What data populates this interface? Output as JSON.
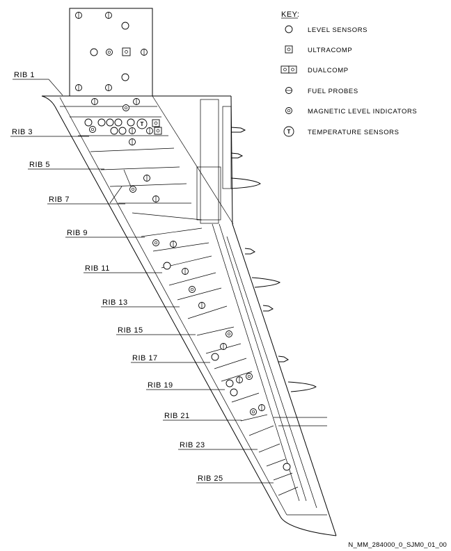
{
  "key": {
    "title": "KEY:",
    "items": [
      {
        "symbol": "level-sensor",
        "label": "LEVEL SENSORS"
      },
      {
        "symbol": "ultracomp",
        "label": "ULTRACOMP"
      },
      {
        "symbol": "dualcomp",
        "label": "DUALCOMP"
      },
      {
        "symbol": "fuel-probe",
        "label": "FUEL PROBES"
      },
      {
        "symbol": "magnetic-level-indicator",
        "label": "MAGNETIC LEVEL INDICATORS"
      },
      {
        "symbol": "temperature-sensor",
        "label": "TEMPERATURE SENSORS",
        "glyph": "T"
      }
    ]
  },
  "ribs": [
    "RIB 1",
    "RIB 3",
    "RIB 5",
    "RIB 7",
    "RIB 9",
    "RIB 11",
    "RIB 13",
    "RIB 15",
    "RIB 17",
    "RIB 19",
    "RIB 21",
    "RIB 23",
    "RIB 25"
  ],
  "figure_id": "N_MM_284000_0_SJM0_01_00",
  "colors": {
    "line": "#000000",
    "background": "#ffffff"
  }
}
